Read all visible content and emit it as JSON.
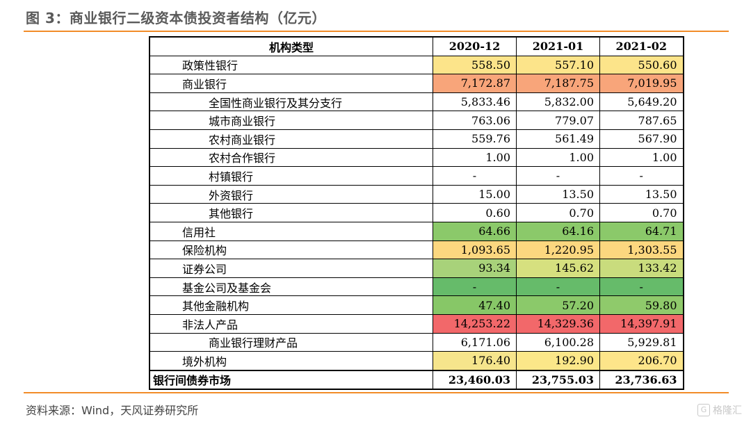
{
  "title": "图 3：商业银行二级资本债投资者结构（亿元）",
  "source": "资料来源：Wind，天风证券研究所",
  "watermark": {
    "icon_name": "gelonghui-logo-icon",
    "icon_text": "G",
    "text": "格隆汇"
  },
  "chart_data": {
    "type": "table",
    "columns": [
      "机构类型",
      "2020-12",
      "2021-01",
      "2021-02"
    ],
    "rows": [
      {
        "name": "政策性银行",
        "level": 1,
        "values": [
          "558.50",
          "557.10",
          "550.60"
        ],
        "colors": [
          "#fce48a",
          "#fce48a",
          "#fce48a"
        ]
      },
      {
        "name": "商业银行",
        "level": 1,
        "values": [
          "7,172.87",
          "7,187.75",
          "7,019.95"
        ],
        "colors": [
          "#f8a57a",
          "#f8a57a",
          "#f8a57a"
        ]
      },
      {
        "name": "全国性商业银行及其分支行",
        "level": 2,
        "values": [
          "5,833.46",
          "5,832.00",
          "5,649.20"
        ],
        "colors": [
          "",
          "",
          ""
        ]
      },
      {
        "name": "城市商业银行",
        "level": 2,
        "values": [
          "763.06",
          "779.07",
          "787.65"
        ],
        "colors": [
          "",
          "",
          ""
        ]
      },
      {
        "name": "农村商业银行",
        "level": 2,
        "values": [
          "559.76",
          "561.49",
          "567.90"
        ],
        "colors": [
          "",
          "",
          ""
        ]
      },
      {
        "name": "农村合作银行",
        "level": 2,
        "values": [
          "1.00",
          "1.00",
          "1.00"
        ],
        "colors": [
          "",
          "",
          ""
        ]
      },
      {
        "name": "村镇银行",
        "level": 2,
        "values": [
          "-",
          "-",
          "-"
        ],
        "colors": [
          "",
          "",
          ""
        ]
      },
      {
        "name": "外资银行",
        "level": 2,
        "values": [
          "15.00",
          "13.50",
          "13.50"
        ],
        "colors": [
          "",
          "",
          ""
        ]
      },
      {
        "name": "其他银行",
        "level": 2,
        "values": [
          "0.60",
          "0.70",
          "0.70"
        ],
        "colors": [
          "",
          "",
          ""
        ]
      },
      {
        "name": "信用社",
        "level": 1,
        "values": [
          "64.66",
          "64.16",
          "64.71"
        ],
        "colors": [
          "#8bc96a",
          "#8bc96a",
          "#8bc96a"
        ]
      },
      {
        "name": "保险机构",
        "level": 1,
        "values": [
          "1,093.65",
          "1,220.95",
          "1,303.55"
        ],
        "colors": [
          "#fcd77f",
          "#fcd77f",
          "#fcd77f"
        ]
      },
      {
        "name": "证券公司",
        "level": 1,
        "values": [
          "93.34",
          "145.62",
          "133.42"
        ],
        "colors": [
          "#a8d27a",
          "#d6e07f",
          "#c9dc7d"
        ]
      },
      {
        "name": "基金公司及基金会",
        "level": 1,
        "values": [
          "-",
          "-",
          "-"
        ],
        "colors": [
          "#66bb6a",
          "#66bb6a",
          "#66bb6a"
        ]
      },
      {
        "name": "其他金融机构",
        "level": 1,
        "values": [
          "47.40",
          "57.20",
          "59.80"
        ],
        "colors": [
          "#87c767",
          "#8bc96a",
          "#8fca6b"
        ]
      },
      {
        "name": "非法人产品",
        "level": 1,
        "values": [
          "14,253.22",
          "14,329.36",
          "14,397.91"
        ],
        "colors": [
          "#f2686a",
          "#f2686a",
          "#f2686a"
        ]
      },
      {
        "name": "商业银行理财产品",
        "level": 2,
        "values": [
          "6,171.06",
          "6,100.28",
          "5,929.81"
        ],
        "colors": [
          "",
          "",
          ""
        ]
      },
      {
        "name": "境外机构",
        "level": 1,
        "values": [
          "176.40",
          "192.90",
          "206.70"
        ],
        "colors": [
          "#f6e58c",
          "#fbe789",
          "#fde58a"
        ]
      },
      {
        "name": "银行间债券市场",
        "level": 0,
        "values": [
          "23,460.03",
          "23,755.03",
          "23,736.63"
        ],
        "colors": [
          "",
          "",
          ""
        ]
      }
    ]
  }
}
